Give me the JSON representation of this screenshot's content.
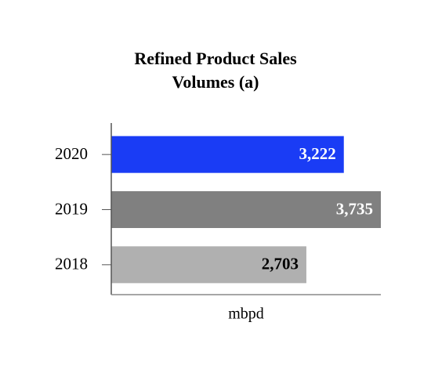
{
  "chart_data": {
    "type": "hbar",
    "title": "Refined Product Sales Volumes (a)",
    "categories": [
      "2020",
      "2019",
      "2018"
    ],
    "values": [
      3222,
      3735,
      2703
    ],
    "value_labels": [
      "3,222",
      "3,735",
      "2,703"
    ],
    "colors": [
      "#1a3cf5",
      "#808080",
      "#b0b0b0"
    ],
    "label_colors": [
      "#ffffff",
      "#ffffff",
      "#000000"
    ],
    "xlabel": "mbpd",
    "xlim": [
      0,
      3735
    ]
  }
}
